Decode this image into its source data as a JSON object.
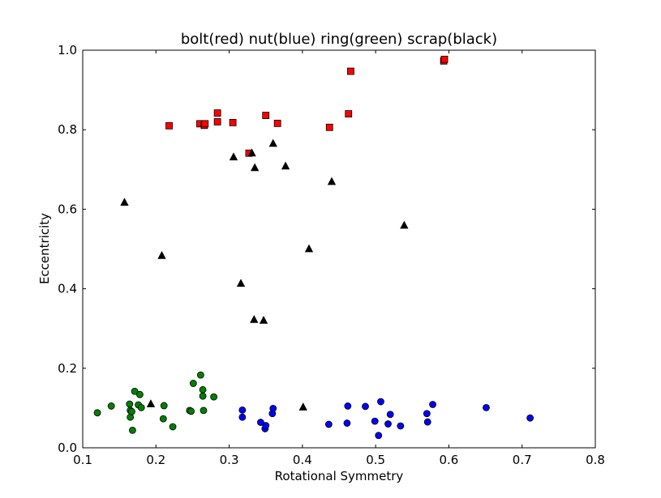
{
  "chart_data": {
    "type": "scatter",
    "title": "bolt(red) nut(blue) ring(green) scrap(black)",
    "xlabel": "Rotational Symmetry",
    "ylabel": "Eccentricity",
    "xlim": [
      0.1,
      0.8
    ],
    "ylim": [
      0.0,
      1.0
    ],
    "xticks": [
      "0.1",
      "0.2",
      "0.3",
      "0.4",
      "0.5",
      "0.6",
      "0.7",
      "0.8"
    ],
    "yticks": [
      "0.0",
      "0.2",
      "0.4",
      "0.6",
      "0.8",
      "1.0"
    ],
    "grid": false,
    "legend": "none",
    "series": [
      {
        "color": "#ff0000",
        "marker": "square",
        "x": [
          0.218,
          0.26,
          0.266,
          0.267,
          0.284,
          0.284,
          0.305,
          0.327,
          0.35,
          0.366,
          0.437,
          0.463,
          0.466,
          0.593,
          0.594
        ],
        "y": [
          0.81,
          0.815,
          0.811,
          0.815,
          0.842,
          0.82,
          0.818,
          0.741,
          0.836,
          0.816,
          0.806,
          0.84,
          0.947,
          0.973,
          0.977
        ]
      },
      {
        "color": "#0000ff",
        "marker": "circle",
        "x": [
          0.318,
          0.318,
          0.343,
          0.349,
          0.35,
          0.359,
          0.36,
          0.436,
          0.461,
          0.462,
          0.486,
          0.499,
          0.504,
          0.507,
          0.517,
          0.52,
          0.534,
          0.57,
          0.571,
          0.578,
          0.651,
          0.711
        ],
        "y": [
          0.095,
          0.077,
          0.064,
          0.048,
          0.056,
          0.086,
          0.099,
          0.059,
          0.062,
          0.105,
          0.104,
          0.067,
          0.031,
          0.116,
          0.06,
          0.084,
          0.055,
          0.086,
          0.065,
          0.109,
          0.101,
          0.075
        ],
        "_note": ""
      },
      {
        "color": "#008000",
        "marker": "circle",
        "x": [
          0.12,
          0.139,
          0.164,
          0.165,
          0.165,
          0.167,
          0.168,
          0.171,
          0.176,
          0.178,
          0.18,
          0.21,
          0.211,
          0.223,
          0.246,
          0.248,
          0.251,
          0.261,
          0.264,
          0.264,
          0.265,
          0.279
        ],
        "y": [
          0.088,
          0.105,
          0.11,
          0.077,
          0.094,
          0.091,
          0.044,
          0.142,
          0.108,
          0.134,
          0.101,
          0.073,
          0.106,
          0.053,
          0.094,
          0.092,
          0.162,
          0.183,
          0.13,
          0.146,
          0.094,
          0.128
        ]
      },
      {
        "color": "#000000",
        "marker": "triangle",
        "x": [
          0.157,
          0.193,
          0.208,
          0.306,
          0.316,
          0.331,
          0.334,
          0.335,
          0.347,
          0.36,
          0.377,
          0.401,
          0.409,
          0.44,
          0.539
        ],
        "y": [
          0.617,
          0.11,
          0.483,
          0.731,
          0.413,
          0.741,
          0.322,
          0.704,
          0.32,
          0.765,
          0.708,
          0.102,
          0.5,
          0.669,
          0.559
        ]
      }
    ]
  }
}
